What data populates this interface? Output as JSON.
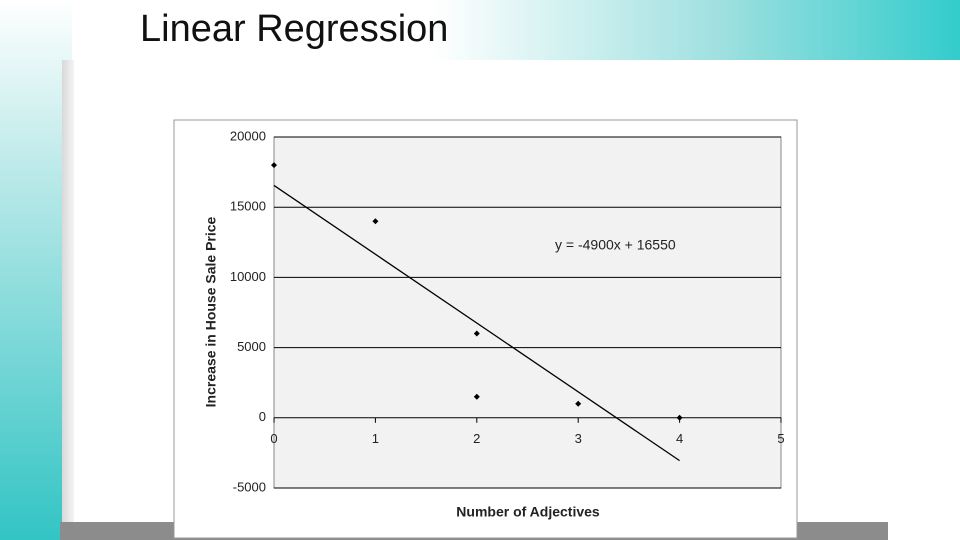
{
  "slide_title": "Linear Regression",
  "chart_data": {
    "type": "scatter",
    "x_label": "Number of Adjectives",
    "y_label": "Increase in House Sale Price",
    "x": [
      0,
      1,
      2,
      2,
      3,
      4
    ],
    "values": [
      18000,
      14000,
      6000,
      1500,
      1000,
      0
    ],
    "color": "#000000",
    "xlim": [
      0,
      5
    ],
    "xticks": [
      0,
      1,
      2,
      3,
      4,
      5
    ],
    "ylim": [
      -5000,
      20000
    ],
    "yticks": [
      -5000,
      0,
      5000,
      10000,
      15000,
      20000
    ],
    "grid": true,
    "trendline": {
      "label": "y = -4900x + 16550",
      "slope": -4900,
      "intercept": 16550,
      "color": "#000000"
    }
  }
}
